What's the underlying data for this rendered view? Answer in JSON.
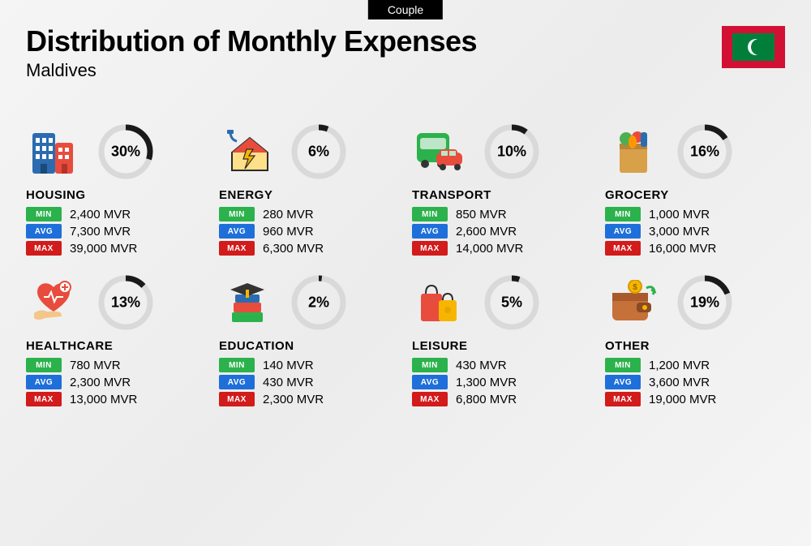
{
  "header": {
    "badge": "Couple",
    "title": "Distribution of Monthly Expenses",
    "subtitle": "Maldives"
  },
  "flag": {
    "bg": "#d21034",
    "panel": "#007e3a",
    "crescent": "#ffffff"
  },
  "ring": {
    "track_color": "#d9d9d9",
    "fill_color": "#1a1a1a",
    "stroke_width": 7,
    "radius": 30,
    "size": 74
  },
  "badges": {
    "min": {
      "label": "MIN",
      "color": "#2bb24c"
    },
    "avg": {
      "label": "AVG",
      "color": "#1e6fd9"
    },
    "max": {
      "label": "MAX",
      "color": "#d21b1b"
    }
  },
  "currency": "MVR",
  "categories": [
    {
      "key": "housing",
      "name": "HOUSING",
      "percent": 30,
      "min": "2,400",
      "avg": "7,300",
      "max": "39,000",
      "icon": "buildings"
    },
    {
      "key": "energy",
      "name": "ENERGY",
      "percent": 6,
      "min": "280",
      "avg": "960",
      "max": "6,300",
      "icon": "house-bolt"
    },
    {
      "key": "transport",
      "name": "TRANSPORT",
      "percent": 10,
      "min": "850",
      "avg": "2,600",
      "max": "14,000",
      "icon": "bus-car"
    },
    {
      "key": "grocery",
      "name": "GROCERY",
      "percent": 16,
      "min": "1,000",
      "avg": "3,000",
      "max": "16,000",
      "icon": "grocery-bag"
    },
    {
      "key": "healthcare",
      "name": "HEALTHCARE",
      "percent": 13,
      "min": "780",
      "avg": "2,300",
      "max": "13,000",
      "icon": "heart-hand"
    },
    {
      "key": "education",
      "name": "EDUCATION",
      "percent": 2,
      "min": "140",
      "avg": "430",
      "max": "2,300",
      "icon": "books-cap"
    },
    {
      "key": "leisure",
      "name": "LEISURE",
      "percent": 5,
      "min": "430",
      "avg": "1,300",
      "max": "6,800",
      "icon": "shopping-bags"
    },
    {
      "key": "other",
      "name": "OTHER",
      "percent": 19,
      "min": "1,200",
      "avg": "3,600",
      "max": "19,000",
      "icon": "wallet"
    }
  ]
}
